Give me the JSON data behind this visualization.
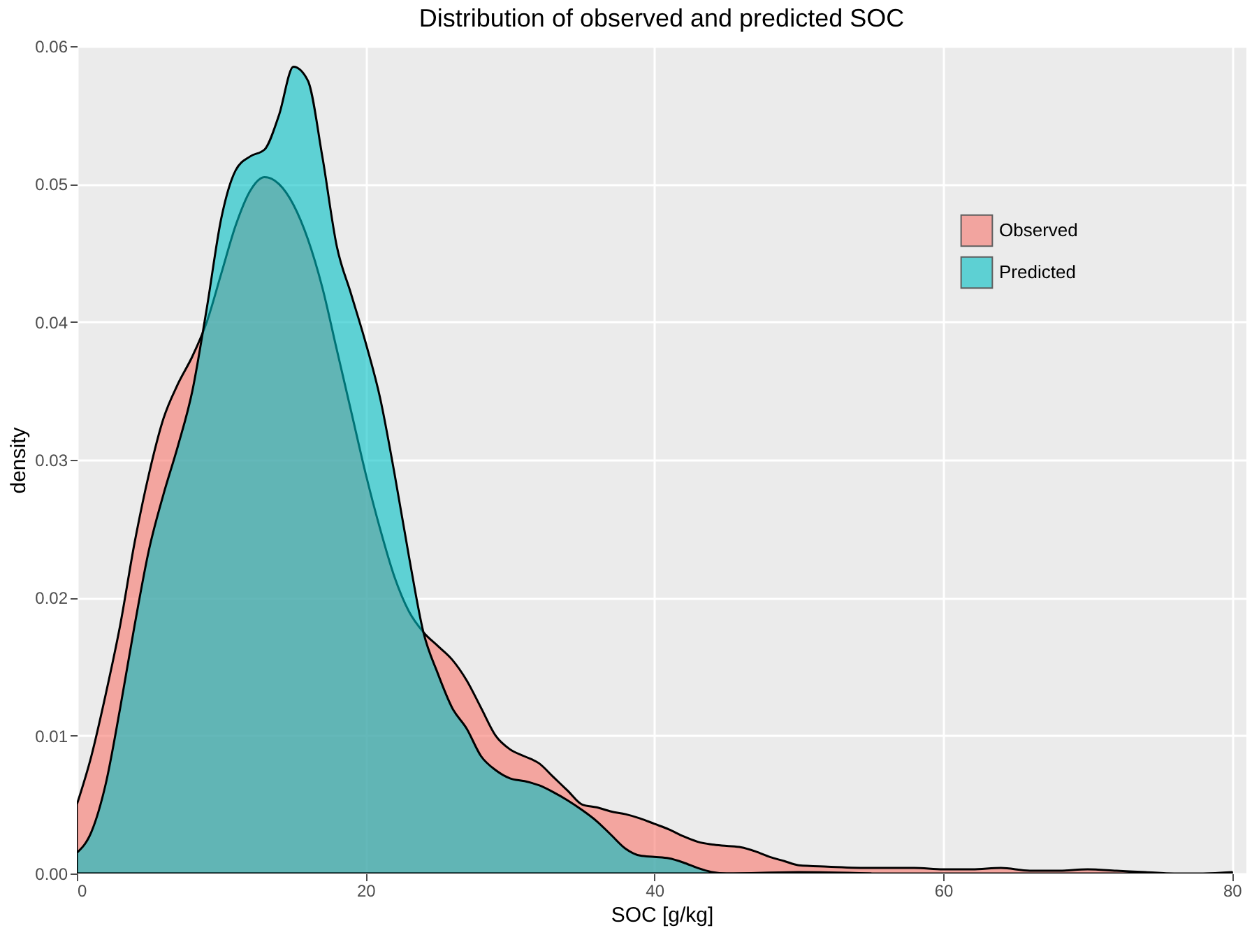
{
  "chart_data": {
    "type": "area",
    "title": "Distribution of observed and predicted SOC",
    "xlabel": "SOC [g/kg]",
    "ylabel": "density",
    "xlim": [
      0,
      81
    ],
    "ylim": [
      0,
      0.06
    ],
    "xticks": [
      0,
      20,
      40,
      60,
      80
    ],
    "yticks": [
      {
        "value": 0,
        "label": "0.00"
      },
      {
        "value": 0.01,
        "label": "0.01"
      },
      {
        "value": 0.02,
        "label": "0.02"
      },
      {
        "value": 0.03,
        "label": "0.03"
      },
      {
        "value": 0.04,
        "label": "0.04"
      },
      {
        "value": 0.05,
        "label": "0.05"
      },
      {
        "value": 0.06,
        "label": "0.06"
      }
    ],
    "grid": true,
    "legend": "top right",
    "series": [
      {
        "name": "Observed",
        "color": "#f8766d",
        "x": [
          0,
          1,
          2,
          3,
          4,
          5,
          6,
          7,
          8,
          9,
          10,
          11,
          12,
          13,
          14,
          15,
          16,
          17,
          18,
          19,
          20,
          21,
          22,
          23,
          24,
          25,
          26,
          27,
          28,
          29,
          30,
          31,
          32,
          33,
          34,
          35,
          36,
          37,
          38,
          39,
          40,
          41,
          42,
          43,
          44,
          45,
          46,
          47,
          48,
          49,
          50,
          52,
          55,
          58,
          60,
          62,
          64,
          66,
          68,
          70,
          72,
          74,
          76,
          78,
          80
        ],
        "values": [
          0.005,
          0.0085,
          0.013,
          0.018,
          0.024,
          0.029,
          0.033,
          0.0355,
          0.0375,
          0.04,
          0.0435,
          0.047,
          0.0495,
          0.0505,
          0.05,
          0.0485,
          0.046,
          0.0425,
          0.038,
          0.0335,
          0.029,
          0.025,
          0.0215,
          0.019,
          0.0175,
          0.0165,
          0.0155,
          0.014,
          0.012,
          0.01,
          0.009,
          0.0085,
          0.008,
          0.007,
          0.006,
          0.005,
          0.0048,
          0.0045,
          0.0043,
          0.004,
          0.0036,
          0.0032,
          0.0027,
          0.0023,
          0.0021,
          0.002,
          0.0019,
          0.0016,
          0.0012,
          0.0009,
          0.0006,
          0.0005,
          0.0004,
          0.0004,
          0.0003,
          0.0003,
          0.0004,
          0.0002,
          0.0002,
          0.0003,
          0.0002,
          0.0001,
          0,
          0,
          0.0001
        ]
      },
      {
        "name": "Predicted",
        "color": "#00bfc4",
        "x": [
          0,
          1,
          2,
          3,
          4,
          5,
          6,
          7,
          8,
          9,
          10,
          11,
          12,
          13,
          14,
          15,
          16,
          17,
          18,
          19,
          20,
          21,
          22,
          23,
          24,
          25,
          26,
          27,
          28,
          29,
          30,
          31,
          32,
          33,
          34,
          35,
          36,
          37,
          38,
          39,
          40,
          41,
          42,
          43,
          44,
          45,
          50,
          55
        ],
        "values": [
          0.0015,
          0.003,
          0.0065,
          0.012,
          0.018,
          0.0235,
          0.0275,
          0.031,
          0.035,
          0.041,
          0.0475,
          0.051,
          0.052,
          0.0525,
          0.055,
          0.0585,
          0.0575,
          0.052,
          0.0455,
          0.042,
          0.0385,
          0.0345,
          0.029,
          0.023,
          0.0175,
          0.0145,
          0.012,
          0.0105,
          0.0085,
          0.0075,
          0.0069,
          0.0067,
          0.0064,
          0.0059,
          0.0053,
          0.0046,
          0.0038,
          0.0028,
          0.0018,
          0.0013,
          0.0012,
          0.0011,
          0.0008,
          0.0004,
          0.0001,
          0,
          0.0001,
          0
        ]
      }
    ]
  }
}
